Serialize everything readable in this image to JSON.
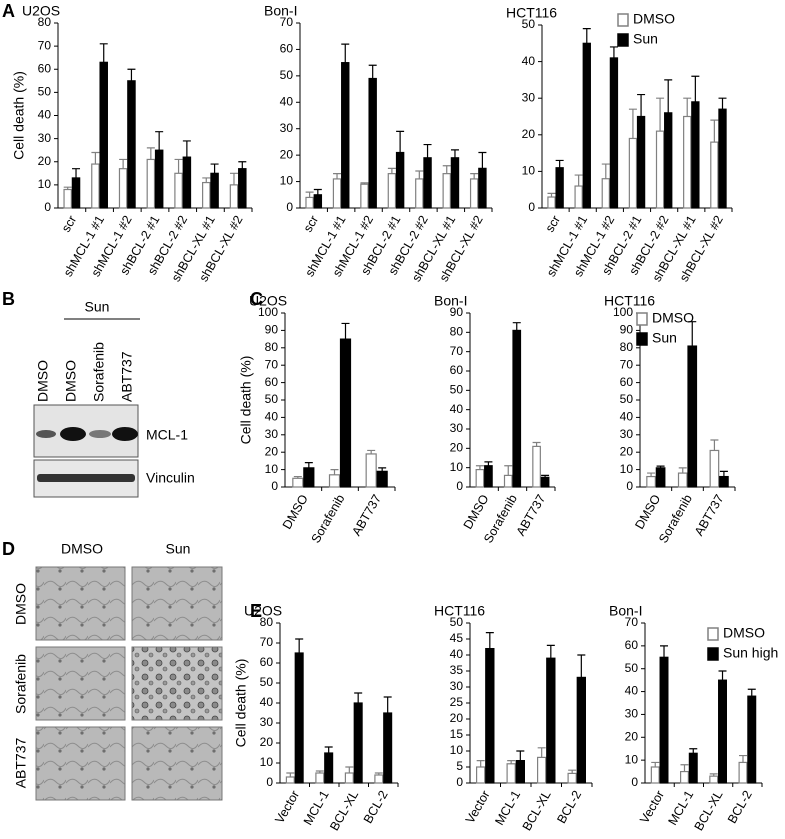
{
  "panel_labels": [
    "A",
    "B",
    "C",
    "D",
    "E"
  ],
  "blot": {
    "group_label": "Sun",
    "lanes": [
      "DMSO",
      "DMSO",
      "Sorafenib",
      "ABT737"
    ],
    "bands": [
      "MCL-1",
      "Vinculin"
    ]
  },
  "micrographs": {
    "columns": [
      "DMSO",
      "Sun"
    ],
    "rows": [
      "DMSO",
      "Sorafenib",
      "ABT737"
    ]
  },
  "chart_data": [
    {
      "type": "bar",
      "title": "U2OS",
      "ylabel": "Cell death (%)",
      "categories": [
        "scr",
        "shMCL-1 #1",
        "shMCL-1 #2",
        "shBCL-2 #1",
        "shBCL-2 #2",
        "shBCL-XL #1",
        "shBCL-XL #2"
      ],
      "series": [
        {
          "name": "DMSO",
          "color": "#ffffff",
          "edgecolor": "#808080",
          "values": [
            8,
            19,
            17,
            21,
            15,
            11,
            10
          ],
          "errors": [
            1,
            5,
            4,
            5,
            6,
            2,
            5
          ]
        },
        {
          "name": "Sun",
          "color": "#000000",
          "edgecolor": "#000000",
          "values": [
            13,
            63,
            55,
            25,
            22,
            15,
            17
          ],
          "errors": [
            4,
            8,
            5,
            8,
            7,
            4,
            3
          ]
        }
      ],
      "ylim": [
        0,
        80
      ],
      "yticks": [
        0,
        10,
        20,
        30,
        40,
        50,
        60,
        70,
        80
      ]
    },
    {
      "type": "bar",
      "title": "Bon-I",
      "categories": [
        "scr",
        "shMCL-1 #1",
        "shMCL-1 #2",
        "shBCL-2 #1",
        "shBCL-2 #2",
        "shBCL-XL #1",
        "shBCL-XL #2"
      ],
      "series": [
        {
          "name": "DMSO",
          "color": "#ffffff",
          "edgecolor": "#808080",
          "values": [
            4,
            11,
            9,
            13,
            11,
            13,
            11
          ],
          "errors": [
            2,
            2,
            0.5,
            2,
            3,
            3,
            2
          ]
        },
        {
          "name": "Sun",
          "color": "#000000",
          "edgecolor": "#000000",
          "values": [
            5,
            55,
            49,
            21,
            19,
            19,
            15
          ],
          "errors": [
            2,
            7,
            5,
            8,
            5,
            3,
            6
          ]
        }
      ],
      "ylim": [
        0,
        70
      ],
      "yticks": [
        0,
        10,
        20,
        30,
        40,
        50,
        60,
        70
      ]
    },
    {
      "type": "bar",
      "title": "HCT116",
      "legend": "top-right",
      "categories": [
        "scr",
        "shMCL-1 #1",
        "shMCL-1 #2",
        "shBCL-2 #1",
        "shBCL-2 #2",
        "shBCL-XL #1",
        "shBCL-XL #2"
      ],
      "series": [
        {
          "name": "DMSO",
          "color": "#ffffff",
          "edgecolor": "#808080",
          "values": [
            3,
            6,
            8,
            19,
            21,
            25,
            18
          ],
          "errors": [
            1,
            3,
            4,
            8,
            9,
            5,
            6
          ]
        },
        {
          "name": "Sun",
          "color": "#000000",
          "edgecolor": "#000000",
          "values": [
            11,
            45,
            41,
            25,
            26,
            29,
            27
          ],
          "errors": [
            2,
            4,
            3,
            6,
            9,
            7,
            3
          ]
        }
      ],
      "ylim": [
        0,
        50
      ],
      "yticks": [
        0,
        10,
        20,
        30,
        40,
        50
      ]
    },
    {
      "type": "bar",
      "title": "U2OS",
      "ylabel": "Cell death (%)",
      "categories": [
        "DMSO",
        "Sorafenib",
        "ABT737"
      ],
      "series": [
        {
          "name": "DMSO",
          "color": "#ffffff",
          "edgecolor": "#808080",
          "values": [
            5,
            7,
            19
          ],
          "errors": [
            1,
            3,
            2
          ]
        },
        {
          "name": "Sun",
          "color": "#000000",
          "edgecolor": "#000000",
          "values": [
            11,
            85,
            9
          ],
          "errors": [
            3,
            9,
            2
          ]
        }
      ],
      "ylim": [
        0,
        100
      ],
      "yticks": [
        0,
        10,
        20,
        30,
        40,
        50,
        60,
        70,
        80,
        90,
        100
      ]
    },
    {
      "type": "bar",
      "title": "Bon-I",
      "categories": [
        "DMSO",
        "Sorafenib",
        "ABT737"
      ],
      "series": [
        {
          "name": "DMSO",
          "color": "#ffffff",
          "edgecolor": "#808080",
          "values": [
            9,
            6,
            21
          ],
          "errors": [
            2,
            5,
            2
          ]
        },
        {
          "name": "Sun",
          "color": "#000000",
          "edgecolor": "#000000",
          "values": [
            11,
            81,
            5
          ],
          "errors": [
            2,
            4,
            1
          ]
        }
      ],
      "ylim": [
        0,
        90
      ],
      "yticks": [
        0,
        10,
        20,
        30,
        40,
        50,
        60,
        70,
        80,
        90
      ]
    },
    {
      "type": "bar",
      "title": "HCT116",
      "legend": "top-right",
      "categories": [
        "DMSO",
        "Sorafenib",
        "ABT737"
      ],
      "series": [
        {
          "name": "DMSO",
          "color": "#ffffff",
          "edgecolor": "#808080",
          "values": [
            6,
            8,
            21
          ],
          "errors": [
            2,
            3,
            6
          ]
        },
        {
          "name": "Sun",
          "color": "#000000",
          "edgecolor": "#000000",
          "values": [
            11,
            81,
            6
          ],
          "errors": [
            1,
            14,
            3
          ]
        }
      ],
      "ylim": [
        0,
        100
      ],
      "yticks": [
        0,
        10,
        20,
        30,
        40,
        50,
        60,
        70,
        80,
        90,
        100
      ]
    },
    {
      "type": "bar",
      "title": "U2OS",
      "ylabel": "Cell death (%)",
      "categories": [
        "Vector",
        "MCL-1",
        "BCL-XL",
        "BCL-2"
      ],
      "series": [
        {
          "name": "DMSO",
          "color": "#ffffff",
          "edgecolor": "#808080",
          "values": [
            3,
            5,
            5,
            4
          ],
          "errors": [
            2,
            1,
            3,
            1
          ]
        },
        {
          "name": "Sun high",
          "color": "#000000",
          "edgecolor": "#000000",
          "values": [
            65,
            15,
            40,
            35
          ],
          "errors": [
            7,
            3,
            5,
            8
          ]
        }
      ],
      "ylim": [
        0,
        80
      ],
      "yticks": [
        0,
        10,
        20,
        30,
        40,
        50,
        60,
        70,
        80
      ]
    },
    {
      "type": "bar",
      "title": "HCT116",
      "categories": [
        "Vector",
        "MCL-1",
        "BCL-XL",
        "BCL-2"
      ],
      "series": [
        {
          "name": "DMSO",
          "color": "#ffffff",
          "edgecolor": "#808080",
          "values": [
            5,
            6,
            8,
            3
          ],
          "errors": [
            2,
            1,
            3,
            1
          ]
        },
        {
          "name": "Sun high",
          "color": "#000000",
          "edgecolor": "#000000",
          "values": [
            42,
            7,
            39,
            33
          ],
          "errors": [
            5,
            3,
            4,
            7
          ]
        }
      ],
      "ylim": [
        0,
        50
      ],
      "yticks": [
        0,
        5,
        10,
        15,
        20,
        25,
        30,
        35,
        40,
        45,
        50
      ]
    },
    {
      "type": "bar",
      "title": "Bon-I",
      "legend": "top-right",
      "categories": [
        "Vector",
        "MCL-1",
        "BCL-XL",
        "BCL-2"
      ],
      "series": [
        {
          "name": "DMSO",
          "color": "#ffffff",
          "edgecolor": "#808080",
          "values": [
            7,
            5,
            3,
            9
          ],
          "errors": [
            2,
            3,
            1,
            3
          ]
        },
        {
          "name": "Sun high",
          "color": "#000000",
          "edgecolor": "#000000",
          "values": [
            55,
            13,
            45,
            38
          ],
          "errors": [
            5,
            2,
            4,
            3
          ]
        }
      ],
      "ylim": [
        0,
        70
      ],
      "yticks": [
        0,
        10,
        20,
        30,
        40,
        50,
        60,
        70
      ]
    }
  ]
}
